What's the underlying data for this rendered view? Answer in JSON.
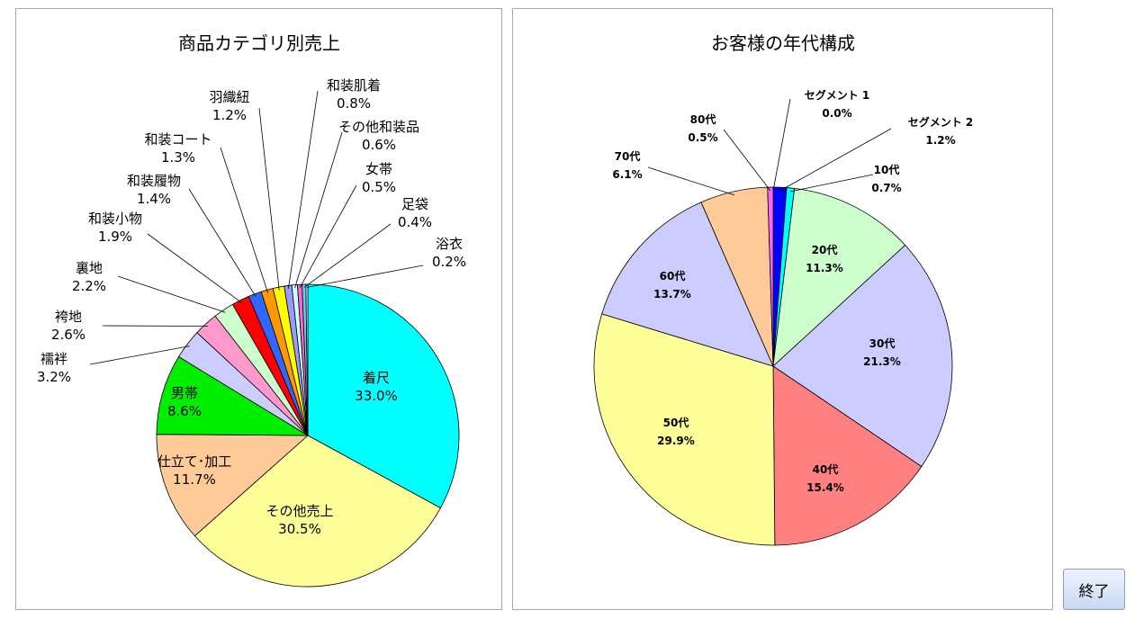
{
  "exit_button": {
    "label": "終了"
  },
  "chart_data": [
    {
      "type": "pie",
      "title": "商品カテゴリ別売上",
      "slices": [
        {
          "label": "着尺",
          "value": 33.0,
          "value_text": "33.0%",
          "color": "#00ffff"
        },
        {
          "label": "その他売上",
          "value": 30.5,
          "value_text": "30.5%",
          "color": "#ffff99"
        },
        {
          "label": "仕立て･加工",
          "value": 11.7,
          "value_text": "11.7%",
          "color": "#ffcc99"
        },
        {
          "label": "男帯",
          "value": 8.6,
          "value_text": "8.6%",
          "color": "#00ee00"
        },
        {
          "label": "襦袢",
          "value": 3.2,
          "value_text": "3.2%",
          "color": "#ccccff"
        },
        {
          "label": "袴地",
          "value": 2.6,
          "value_text": "2.6%",
          "color": "#ff99cc"
        },
        {
          "label": "裏地",
          "value": 2.2,
          "value_text": "2.2%",
          "color": "#ccffcc"
        },
        {
          "label": "和装小物",
          "value": 1.9,
          "value_text": "1.9%",
          "color": "#ff0000"
        },
        {
          "label": "和装履物",
          "value": 1.4,
          "value_text": "1.4%",
          "color": "#3366ff"
        },
        {
          "label": "和装コート",
          "value": 1.3,
          "value_text": "1.3%",
          "color": "#ff9900"
        },
        {
          "label": "羽織紐",
          "value": 1.2,
          "value_text": "1.2%",
          "color": "#ffff00"
        },
        {
          "label": "和装肌着",
          "value": 0.8,
          "value_text": "0.8%",
          "color": "#9999ff"
        },
        {
          "label": "その他和装品",
          "value": 0.6,
          "value_text": "0.6%",
          "color": "#ccffff"
        },
        {
          "label": "女帯",
          "value": 0.5,
          "value_text": "0.5%",
          "color": "#ff66cc"
        },
        {
          "label": "足袋",
          "value": 0.4,
          "value_text": "0.4%",
          "color": "#66ccff"
        },
        {
          "label": "浴衣",
          "value": 0.2,
          "value_text": "0.2%",
          "color": "#ffffff"
        }
      ]
    },
    {
      "type": "pie",
      "title": "お客様の年代構成",
      "slices": [
        {
          "label": "セグメント 1",
          "value": 0.0,
          "value_text": "0.0%",
          "color": "#000000"
        },
        {
          "label": "セグメント 2",
          "value": 1.2,
          "value_text": "1.2%",
          "color": "#0000ff"
        },
        {
          "label": "10代",
          "value": 0.7,
          "value_text": "0.7%",
          "color": "#00ffff"
        },
        {
          "label": "20代",
          "value": 11.3,
          "value_text": "11.3%",
          "color": "#ccffcc"
        },
        {
          "label": "30代",
          "value": 21.3,
          "value_text": "21.3%",
          "color": "#ccccff"
        },
        {
          "label": "40代",
          "value": 15.4,
          "value_text": "15.4%",
          "color": "#ff8080"
        },
        {
          "label": "50代",
          "value": 29.9,
          "value_text": "29.9%",
          "color": "#ffff99"
        },
        {
          "label": "60代",
          "value": 13.7,
          "value_text": "13.7%",
          "color": "#ccccff"
        },
        {
          "label": "70代",
          "value": 6.1,
          "value_text": "6.1%",
          "color": "#ffcc99"
        },
        {
          "label": "80代",
          "value": 0.5,
          "value_text": "0.5%",
          "color": "#ff66ff"
        }
      ]
    }
  ]
}
